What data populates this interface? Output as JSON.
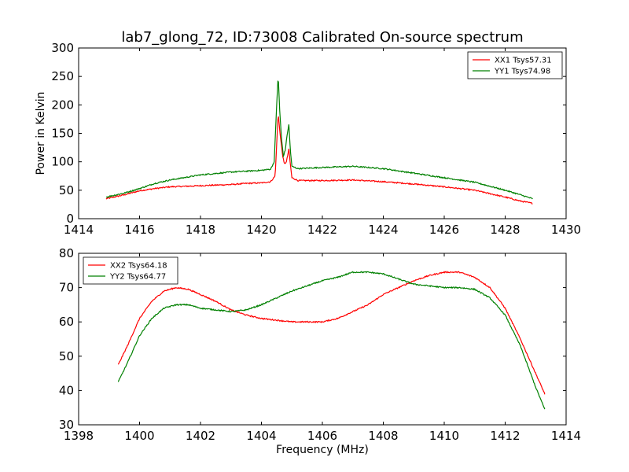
{
  "title": "lab7_glong_72, ID:73008 Calibrated On-source spectrum",
  "chart_data": [
    {
      "type": "line",
      "ylabel": "Power in Kelvin",
      "xlabel": "",
      "xlim": [
        1414,
        1430
      ],
      "ylim": [
        0,
        300
      ],
      "xticks": [
        1414,
        1416,
        1418,
        1420,
        1422,
        1424,
        1426,
        1428,
        1430
      ],
      "yticks": [
        0,
        50,
        100,
        150,
        200,
        250,
        300
      ],
      "legend_position": "top-right",
      "series": [
        {
          "name": "XX1 Tsys57.31",
          "color": "#ff0000",
          "points": [
            [
              1414.9,
              35
            ],
            [
              1415.5,
              42
            ],
            [
              1416.0,
              49
            ],
            [
              1416.5,
              53
            ],
            [
              1417.0,
              56
            ],
            [
              1418.0,
              58
            ],
            [
              1419.0,
              60
            ],
            [
              1419.5,
              62
            ],
            [
              1420.0,
              63
            ],
            [
              1420.3,
              65
            ],
            [
              1420.45,
              75
            ],
            [
              1420.55,
              185
            ],
            [
              1420.62,
              145
            ],
            [
              1420.7,
              110
            ],
            [
              1420.75,
              96
            ],
            [
              1420.82,
              100
            ],
            [
              1420.9,
              122
            ],
            [
              1420.95,
              95
            ],
            [
              1421.0,
              72
            ],
            [
              1421.2,
              67
            ],
            [
              1422.0,
              67
            ],
            [
              1423.0,
              68
            ],
            [
              1424.0,
              65
            ],
            [
              1425.0,
              61
            ],
            [
              1426.0,
              56
            ],
            [
              1427.0,
              50
            ],
            [
              1428.0,
              38
            ],
            [
              1428.5,
              31
            ],
            [
              1428.9,
              27
            ]
          ]
        },
        {
          "name": "YY1 Tsys74.98",
          "color": "#008000",
          "points": [
            [
              1414.9,
              38
            ],
            [
              1415.5,
              45
            ],
            [
              1416.0,
              53
            ],
            [
              1416.5,
              62
            ],
            [
              1417.0,
              68
            ],
            [
              1418.0,
              77
            ],
            [
              1419.0,
              82
            ],
            [
              1420.0,
              85
            ],
            [
              1420.3,
              87
            ],
            [
              1420.42,
              100
            ],
            [
              1420.5,
              200
            ],
            [
              1420.55,
              252
            ],
            [
              1420.6,
              190
            ],
            [
              1420.66,
              140
            ],
            [
              1420.72,
              110
            ],
            [
              1420.78,
              120
            ],
            [
              1420.85,
              150
            ],
            [
              1420.9,
              165
            ],
            [
              1420.95,
              120
            ],
            [
              1421.0,
              92
            ],
            [
              1421.2,
              88
            ],
            [
              1422.0,
              90
            ],
            [
              1423.0,
              92
            ],
            [
              1424.0,
              88
            ],
            [
              1425.0,
              80
            ],
            [
              1426.0,
              72
            ],
            [
              1427.0,
              64
            ],
            [
              1428.0,
              50
            ],
            [
              1428.5,
              42
            ],
            [
              1428.9,
              35
            ]
          ]
        }
      ]
    },
    {
      "type": "line",
      "ylabel": "",
      "xlabel": "Frequency (MHz)",
      "xlim": [
        1398,
        1414
      ],
      "ylim": [
        30,
        80
      ],
      "xticks": [
        1398,
        1400,
        1402,
        1404,
        1406,
        1408,
        1410,
        1412,
        1414
      ],
      "yticks": [
        30,
        40,
        50,
        60,
        70,
        80
      ],
      "legend_position": "top-left",
      "series": [
        {
          "name": "XX2 Tsys64.18",
          "color": "#ff0000",
          "points": [
            [
              1399.3,
              47.5
            ],
            [
              1399.6,
              53
            ],
            [
              1400.0,
              61
            ],
            [
              1400.4,
              66
            ],
            [
              1400.8,
              69
            ],
            [
              1401.2,
              70
            ],
            [
              1401.6,
              69.5
            ],
            [
              1402.0,
              68
            ],
            [
              1402.5,
              66
            ],
            [
              1403.0,
              63.5
            ],
            [
              1403.5,
              62
            ],
            [
              1404.0,
              61
            ],
            [
              1404.5,
              60.5
            ],
            [
              1405.0,
              60
            ],
            [
              1405.5,
              60
            ],
            [
              1406.0,
              60
            ],
            [
              1406.5,
              61
            ],
            [
              1407.0,
              63
            ],
            [
              1407.5,
              65
            ],
            [
              1408.0,
              68
            ],
            [
              1408.5,
              70
            ],
            [
              1409.0,
              72
            ],
            [
              1409.5,
              73.5
            ],
            [
              1410.0,
              74.5
            ],
            [
              1410.5,
              74.5
            ],
            [
              1411.0,
              73
            ],
            [
              1411.5,
              70
            ],
            [
              1412.0,
              64
            ],
            [
              1412.5,
              55
            ],
            [
              1413.0,
              45
            ],
            [
              1413.3,
              39
            ]
          ]
        },
        {
          "name": "YY2 Tsys64.77",
          "color": "#008000",
          "points": [
            [
              1399.3,
              42.5
            ],
            [
              1399.6,
              48
            ],
            [
              1400.0,
              56
            ],
            [
              1400.4,
              61
            ],
            [
              1400.8,
              64
            ],
            [
              1401.2,
              65
            ],
            [
              1401.6,
              65
            ],
            [
              1402.0,
              64
            ],
            [
              1402.5,
              63.5
            ],
            [
              1403.0,
              63
            ],
            [
              1403.5,
              63.5
            ],
            [
              1404.0,
              65
            ],
            [
              1404.5,
              67
            ],
            [
              1405.0,
              69
            ],
            [
              1405.5,
              70.5
            ],
            [
              1406.0,
              72
            ],
            [
              1406.5,
              73
            ],
            [
              1407.0,
              74.5
            ],
            [
              1407.5,
              74.5
            ],
            [
              1408.0,
              74
            ],
            [
              1408.5,
              72.5
            ],
            [
              1409.0,
              71
            ],
            [
              1409.5,
              70.5
            ],
            [
              1410.0,
              70
            ],
            [
              1410.5,
              70
            ],
            [
              1411.0,
              69.5
            ],
            [
              1411.5,
              67
            ],
            [
              1412.0,
              62
            ],
            [
              1412.5,
              53
            ],
            [
              1413.0,
              41
            ],
            [
              1413.3,
              34.5
            ]
          ]
        }
      ]
    }
  ]
}
